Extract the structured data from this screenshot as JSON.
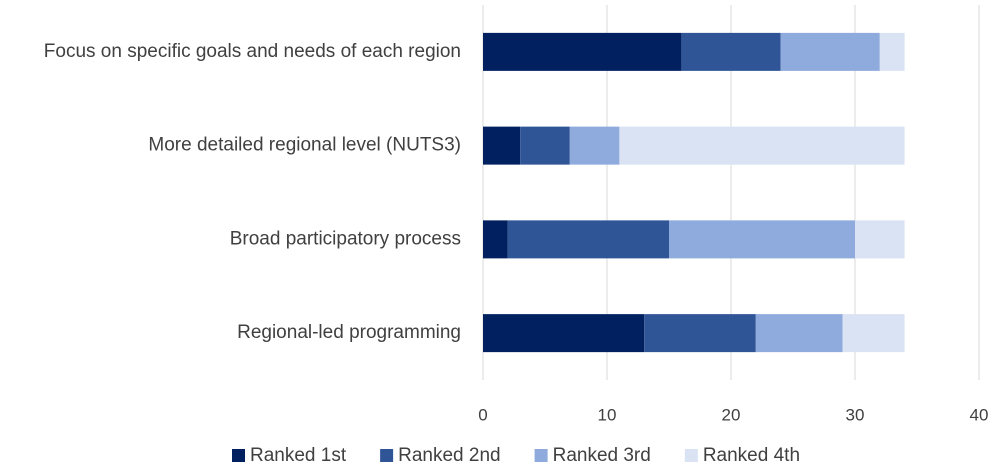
{
  "chart_data": {
    "type": "stacked_barh",
    "categories": [
      "Focus on specific goals and needs of each region",
      "More detailed regional level (NUTS3)",
      "Broad participatory process",
      "Regional-led programming"
    ],
    "series": [
      {
        "name": "Ranked 1st",
        "color": "#002060",
        "values": [
          16,
          3,
          2,
          13
        ]
      },
      {
        "name": "Ranked 2nd",
        "color": "#2f5597",
        "values": [
          8,
          4,
          13,
          9
        ]
      },
      {
        "name": "Ranked 3rd",
        "color": "#8faadc",
        "values": [
          8,
          4,
          15,
          7
        ]
      },
      {
        "name": "Ranked 4th",
        "color": "#dae3f3",
        "values": [
          2,
          23,
          4,
          5
        ]
      }
    ],
    "xlim": [
      0,
      40
    ],
    "xticks": [
      0,
      10,
      20,
      30,
      40
    ],
    "grid": true,
    "legend": "bottom"
  }
}
